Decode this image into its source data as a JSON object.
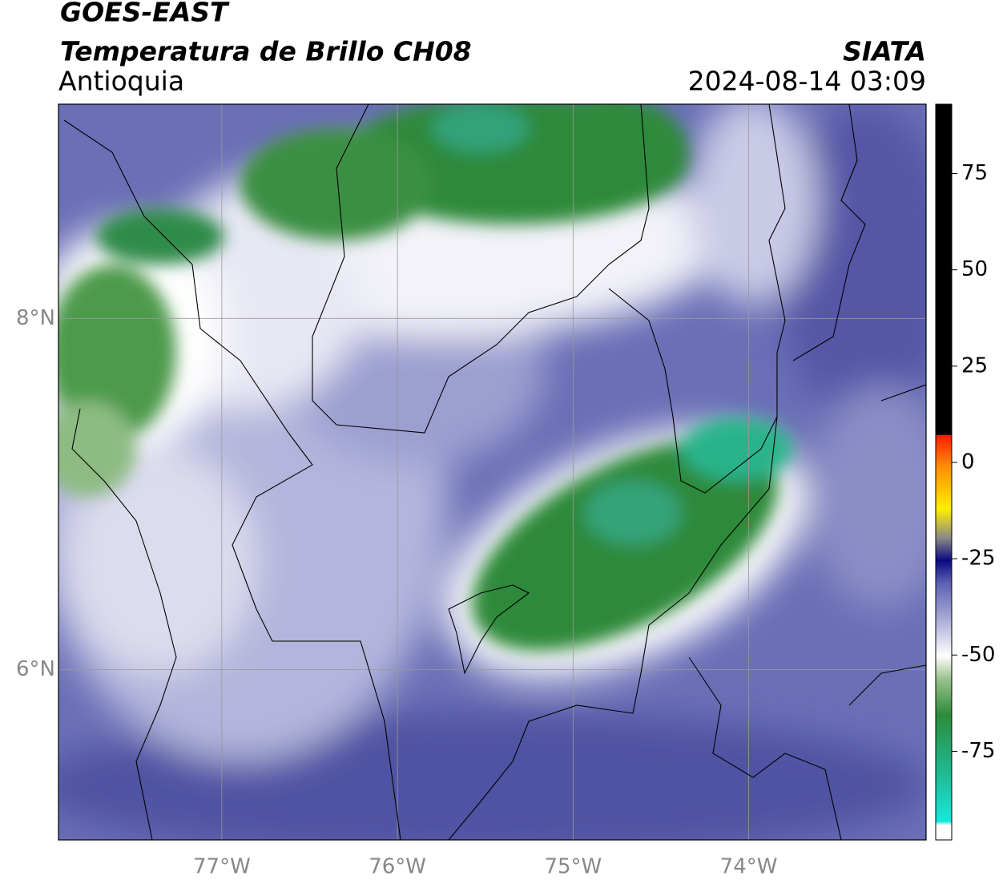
{
  "header": {
    "title": "GOES-EAST",
    "subtitle": "Temperatura de Brillo CH08",
    "region": "Antioquia",
    "source": "SIATA",
    "timestamp": "2024-08-14 03:09"
  },
  "map": {
    "xlim": [
      -77.93,
      -72.99
    ],
    "ylim": [
      5.03,
      9.22
    ],
    "xticks": [
      {
        "value": -77,
        "label": "77°W"
      },
      {
        "value": -76,
        "label": "76°W"
      },
      {
        "value": -75,
        "label": "75°W"
      },
      {
        "value": -74,
        "label": "74°W"
      }
    ],
    "yticks": [
      {
        "value": 6,
        "label": "6°N"
      },
      {
        "value": 8,
        "label": "8°N"
      }
    ]
  },
  "colorbar": {
    "lim": [
      -98,
      93
    ],
    "ticks": [
      75,
      50,
      25,
      0,
      -25,
      -50,
      -75
    ]
  }
}
